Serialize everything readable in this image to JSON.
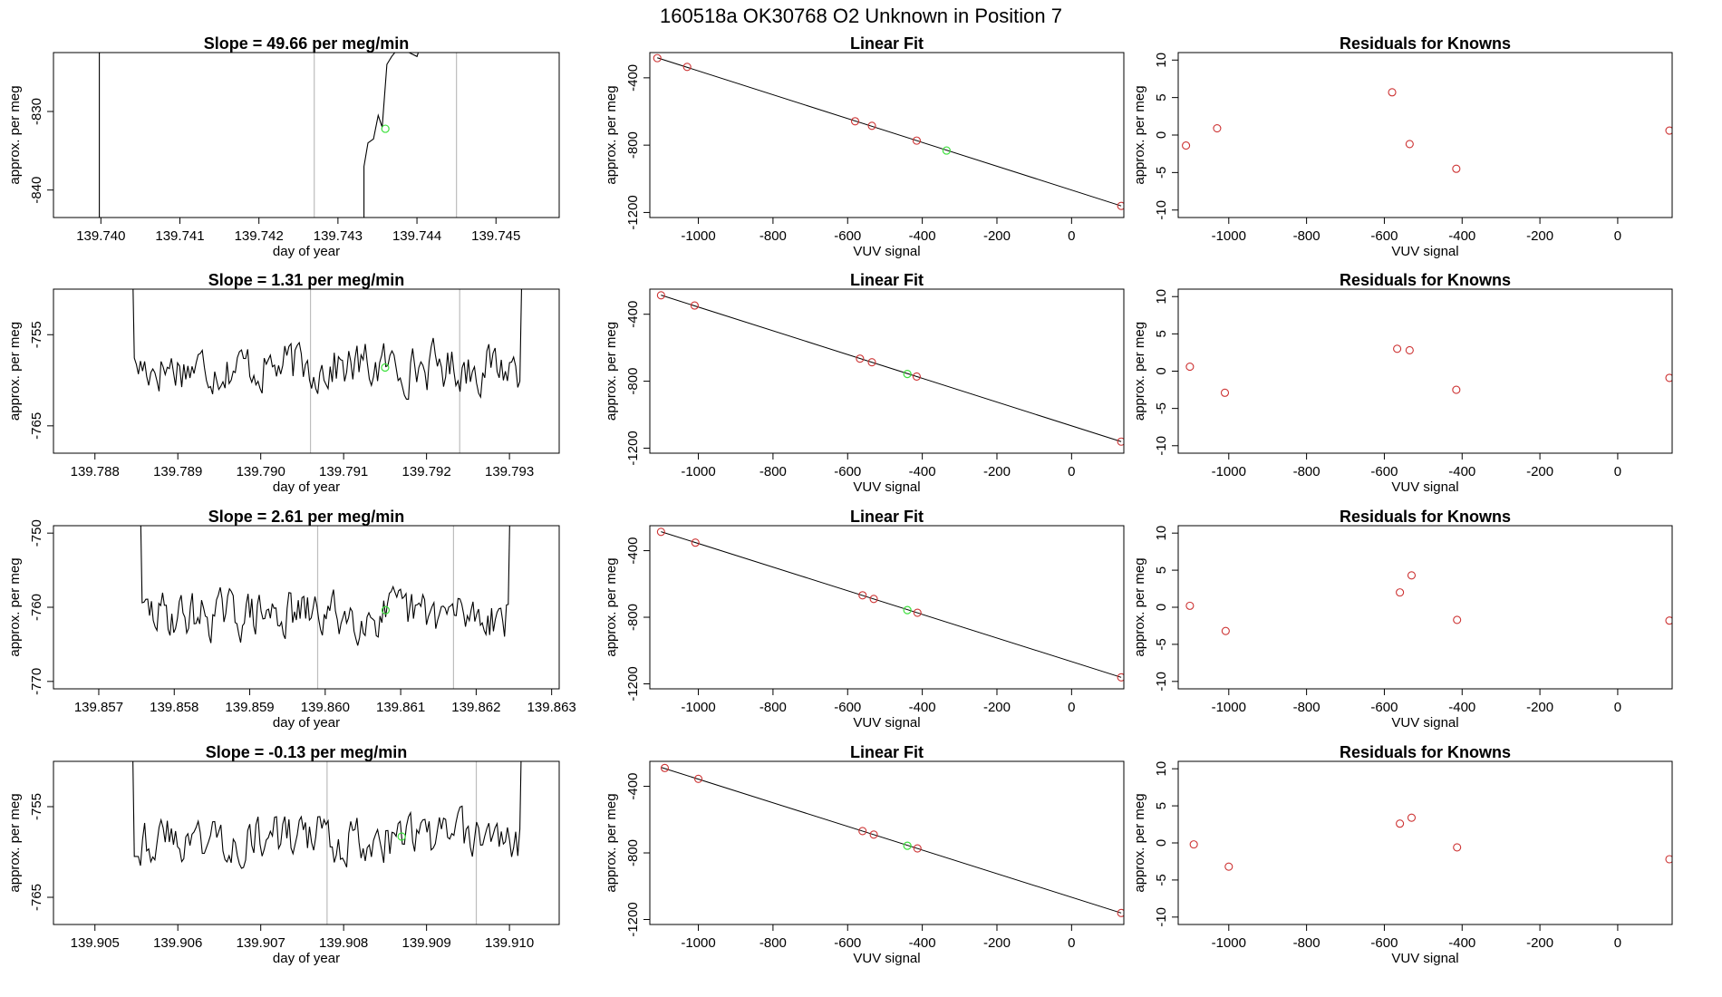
{
  "page_title": "160518a      OK30768    O2 Unknown in Position  7",
  "colors": {
    "known_point": "#cd3333",
    "unknown_point": "#3ee03e",
    "line": "#000000",
    "marker_line": "#bdbdbd"
  },
  "chart_data": [
    {
      "row": 1,
      "timeseries": {
        "type": "line",
        "title": "Slope =  49.66  per meg/min",
        "xlabel": "day of year",
        "ylabel": "approx. per meg",
        "xlim": [
          139.7394,
          139.7458
        ],
        "ylim": [
          -843.5,
          -822.5
        ],
        "xticks": [
          "139.740",
          "139.741",
          "139.742",
          "139.743",
          "139.744",
          "139.745"
        ],
        "xtick_values": [
          139.74,
          139.741,
          139.742,
          139.743,
          139.744,
          139.745
        ],
        "yticks": [
          "-830",
          "-840"
        ],
        "ytick_values": [
          -830,
          -840
        ],
        "vlines": [
          139.7427,
          139.7445
        ],
        "segments": [
          [
            [
              139.73998,
              -810
            ],
            [
              139.73998,
              -860
            ]
          ],
          [
            [
              139.74333,
              -860
            ],
            [
              139.74333,
              -837
            ],
            [
              139.74338,
              -834
            ],
            [
              139.74345,
              -833.5
            ],
            [
              139.74351,
              -830.5
            ],
            [
              139.74356,
              -832
            ],
            [
              139.74362,
              -824
            ],
            [
              139.74368,
              -823
            ],
            [
              139.74376,
              -822
            ],
            [
              139.7439,
              -822.5
            ],
            [
              139.744,
              -823
            ],
            [
              139.7441,
              -820
            ]
          ]
        ],
        "unknown_point": {
          "x": 139.7436,
          "y": -832.2
        }
      },
      "fit": {
        "type": "scatter",
        "title": "Linear Fit",
        "xlabel": "VUV signal",
        "ylabel": "approx. per meg",
        "xlim": [
          -1130,
          140
        ],
        "ylim": [
          -1230,
          -250
        ],
        "xticks": [
          "-1000",
          "-800",
          "-600",
          "-400",
          "-200",
          "0"
        ],
        "xtick_values": [
          -1000,
          -800,
          -600,
          -400,
          -200,
          0
        ],
        "yticks": [
          "-400",
          "-800",
          "-1200"
        ],
        "ytick_values": [
          -400,
          -800,
          -1200
        ],
        "line": [
          [
            -1110,
            -281
          ],
          [
            133,
            -1161
          ]
        ],
        "knowns": [
          [
            -1110,
            -283
          ],
          [
            -1030,
            -335
          ],
          [
            -580,
            -658
          ],
          [
            -535,
            -685
          ],
          [
            -415,
            -773
          ],
          [
            133,
            -1161
          ]
        ],
        "unknown": [
          -335,
          -832
        ]
      },
      "residuals": {
        "type": "scatter",
        "title": "Residuals for Knowns",
        "xlabel": "VUV signal",
        "ylabel": "approx. per meg",
        "xlim": [
          -1130,
          140
        ],
        "ylim": [
          -11,
          11
        ],
        "xticks": [
          "-1000",
          "-800",
          "-600",
          "-400",
          "-200",
          "0"
        ],
        "xtick_values": [
          -1000,
          -800,
          -600,
          -400,
          -200,
          0
        ],
        "yticks": [
          "10",
          "5",
          "0",
          "-5",
          "-10"
        ],
        "ytick_values": [
          10,
          5,
          0,
          -5,
          -10
        ],
        "points": [
          [
            -1110,
            -1.4
          ],
          [
            -1030,
            0.9
          ],
          [
            -580,
            5.7
          ],
          [
            -535,
            -1.2
          ],
          [
            -415,
            -4.5
          ],
          [
            133,
            0.6
          ]
        ]
      }
    },
    {
      "row": 2,
      "timeseries": {
        "type": "line",
        "title": "Slope =  1.31  per meg/min",
        "xlabel": "day of year",
        "ylabel": "approx. per meg",
        "xlim": [
          139.7875,
          139.7936
        ],
        "ylim": [
          -768,
          -750
        ],
        "xticks": [
          "139.788",
          "139.789",
          "139.790",
          "139.791",
          "139.792",
          "139.793"
        ],
        "xtick_values": [
          139.788,
          139.789,
          139.79,
          139.791,
          139.792,
          139.793
        ],
        "yticks": [
          "-755",
          "-765"
        ],
        "ytick_values": [
          -755,
          -765
        ],
        "vlines": [
          139.7906,
          139.7924
        ],
        "gen": {
          "start": 139.78845,
          "end": 139.79315,
          "count": 190,
          "seed": 17,
          "mean": -758.5,
          "amp": 3.8,
          "head": -745,
          "tail": -748
        },
        "unknown_point": {
          "x": 139.7915,
          "y": -758.6
        }
      },
      "fit": {
        "type": "scatter",
        "title": "Linear Fit",
        "xlabel": "VUV signal",
        "ylabel": "approx. per meg",
        "xlim": [
          -1130,
          140
        ],
        "ylim": [
          -1230,
          -250
        ],
        "xticks": [
          "-1000",
          "-800",
          "-600",
          "-400",
          "-200",
          "0"
        ],
        "xtick_values": [
          -1000,
          -800,
          -600,
          -400,
          -200,
          0
        ],
        "yticks": [
          "-400",
          "-800",
          "-1200"
        ],
        "ytick_values": [
          -400,
          -800,
          -1200
        ],
        "line": [
          [
            -1100,
            -286
          ],
          [
            133,
            -1161
          ]
        ],
        "knowns": [
          [
            -1100,
            -287
          ],
          [
            -1010,
            -348
          ],
          [
            -567,
            -665
          ],
          [
            -535,
            -687
          ],
          [
            -415,
            -772
          ],
          [
            133,
            -1161
          ]
        ],
        "unknown": [
          -440,
          -757
        ]
      },
      "residuals": {
        "type": "scatter",
        "title": "Residuals for Knowns",
        "xlabel": "VUV signal",
        "ylabel": "approx. per meg",
        "xlim": [
          -1130,
          140
        ],
        "ylim": [
          -11,
          11
        ],
        "xticks": [
          "-1000",
          "-800",
          "-600",
          "-400",
          "-200",
          "0"
        ],
        "xtick_values": [
          -1000,
          -800,
          -600,
          -400,
          -200,
          0
        ],
        "yticks": [
          "10",
          "5",
          "0",
          "-5",
          "-10"
        ],
        "ytick_values": [
          10,
          5,
          0,
          -5,
          -10
        ],
        "points": [
          [
            -1100,
            0.6
          ],
          [
            -1010,
            -2.9
          ],
          [
            -567,
            3.0
          ],
          [
            -535,
            2.8
          ],
          [
            -415,
            -2.5
          ],
          [
            133,
            -0.9
          ]
        ]
      }
    },
    {
      "row": 3,
      "timeseries": {
        "type": "line",
        "title": "Slope =  2.61  per meg/min",
        "xlabel": "day of year",
        "ylabel": "approx. per meg",
        "xlim": [
          139.8564,
          139.8631
        ],
        "ylim": [
          -771,
          -749
        ],
        "xticks": [
          "139.857",
          "139.858",
          "139.859",
          "139.860",
          "139.861",
          "139.862",
          "139.863"
        ],
        "xtick_values": [
          139.857,
          139.858,
          139.859,
          139.86,
          139.861,
          139.862,
          139.863
        ],
        "yticks": [
          "-750",
          "-760",
          "-770"
        ],
        "ytick_values": [
          -750,
          -760,
          -770
        ],
        "vlines": [
          139.8599,
          139.8617
        ],
        "gen": {
          "start": 139.85755,
          "end": 139.86245,
          "count": 200,
          "seed": 29,
          "mean": -761,
          "amp": 4.5,
          "head": -745,
          "tail": -745
        },
        "unknown_point": {
          "x": 139.8608,
          "y": -760.4
        }
      },
      "fit": {
        "type": "scatter",
        "title": "Linear Fit",
        "xlabel": "VUV signal",
        "ylabel": "approx. per meg",
        "xlim": [
          -1130,
          140
        ],
        "ylim": [
          -1230,
          -250
        ],
        "xticks": [
          "-1000",
          "-800",
          "-600",
          "-400",
          "-200",
          "0"
        ],
        "xtick_values": [
          -1000,
          -800,
          -600,
          -400,
          -200,
          0
        ],
        "yticks": [
          "-400",
          "-800",
          "-1200"
        ],
        "ytick_values": [
          -400,
          -800,
          -1200
        ],
        "line": [
          [
            -1100,
            -286
          ],
          [
            133,
            -1161
          ]
        ],
        "knowns": [
          [
            -1100,
            -287
          ],
          [
            -1008,
            -352
          ],
          [
            -560,
            -668
          ],
          [
            -530,
            -690
          ],
          [
            -413,
            -773
          ],
          [
            133,
            -1161
          ]
        ],
        "unknown": [
          -440,
          -757
        ]
      },
      "residuals": {
        "type": "scatter",
        "title": "Residuals for Knowns",
        "xlabel": "VUV signal",
        "ylabel": "approx. per meg",
        "xlim": [
          -1130,
          140
        ],
        "ylim": [
          -11,
          11
        ],
        "xticks": [
          "-1000",
          "-800",
          "-600",
          "-400",
          "-200",
          "0"
        ],
        "xtick_values": [
          -1000,
          -800,
          -600,
          -400,
          -200,
          0
        ],
        "yticks": [
          "10",
          "5",
          "0",
          "-5",
          "-10"
        ],
        "ytick_values": [
          10,
          5,
          0,
          -5,
          -10
        ],
        "points": [
          [
            -1100,
            0.2
          ],
          [
            -1008,
            -3.2
          ],
          [
            -560,
            2.0
          ],
          [
            -530,
            4.3
          ],
          [
            -413,
            -1.7
          ],
          [
            133,
            -1.8
          ]
        ]
      }
    },
    {
      "row": 4,
      "timeseries": {
        "type": "line",
        "title": "Slope =  -0.13  per meg/min",
        "xlabel": "day of year",
        "ylabel": "approx. per meg",
        "xlim": [
          139.9045,
          139.9106
        ],
        "ylim": [
          -768,
          -750
        ],
        "xticks": [
          "139.905",
          "139.906",
          "139.907",
          "139.908",
          "139.909",
          "139.910"
        ],
        "xtick_values": [
          139.905,
          139.906,
          139.907,
          139.908,
          139.909,
          139.91
        ],
        "yticks": [
          "-755",
          "-765"
        ],
        "ytick_values": [
          -755,
          -765
        ],
        "vlines": [
          139.9078,
          139.9096
        ],
        "gen": {
          "start": 139.90545,
          "end": 139.91015,
          "count": 190,
          "seed": 43,
          "mean": -758.5,
          "amp": 3.8,
          "head": -745,
          "tail": -745
        },
        "unknown_point": {
          "x": 139.9087,
          "y": -758.3
        }
      },
      "fit": {
        "type": "scatter",
        "title": "Linear Fit",
        "xlabel": "VUV signal",
        "ylabel": "approx. per meg",
        "xlim": [
          -1130,
          140
        ],
        "ylim": [
          -1230,
          -250
        ],
        "xticks": [
          "-1000",
          "-800",
          "-600",
          "-400",
          "-200",
          "0"
        ],
        "xtick_values": [
          -1000,
          -800,
          -600,
          -400,
          -200,
          0
        ],
        "yticks": [
          "-400",
          "-800",
          "-1200"
        ],
        "ytick_values": [
          -400,
          -800,
          -1200
        ],
        "line": [
          [
            -1100,
            -286
          ],
          [
            133,
            -1161
          ]
        ],
        "knowns": [
          [
            -1090,
            -290
          ],
          [
            -1000,
            -355
          ],
          [
            -560,
            -669
          ],
          [
            -530,
            -690
          ],
          [
            -413,
            -773
          ],
          [
            133,
            -1161
          ]
        ],
        "unknown": [
          -440,
          -757
        ]
      },
      "residuals": {
        "type": "scatter",
        "title": "Residuals for Knowns",
        "xlabel": "VUV signal",
        "ylabel": "approx. per meg",
        "xlim": [
          -1130,
          140
        ],
        "ylim": [
          -11,
          11
        ],
        "xticks": [
          "-1000",
          "-800",
          "-600",
          "-400",
          "-200",
          "0"
        ],
        "xtick_values": [
          -1000,
          -800,
          -600,
          -400,
          -200,
          0
        ],
        "yticks": [
          "10",
          "5",
          "0",
          "-5",
          "-10"
        ],
        "ytick_values": [
          10,
          5,
          0,
          -5,
          -10
        ],
        "points": [
          [
            -1090,
            -0.2
          ],
          [
            -1000,
            -3.2
          ],
          [
            -560,
            2.6
          ],
          [
            -530,
            3.4
          ],
          [
            -413,
            -0.6
          ],
          [
            133,
            -2.2
          ]
        ]
      }
    }
  ]
}
